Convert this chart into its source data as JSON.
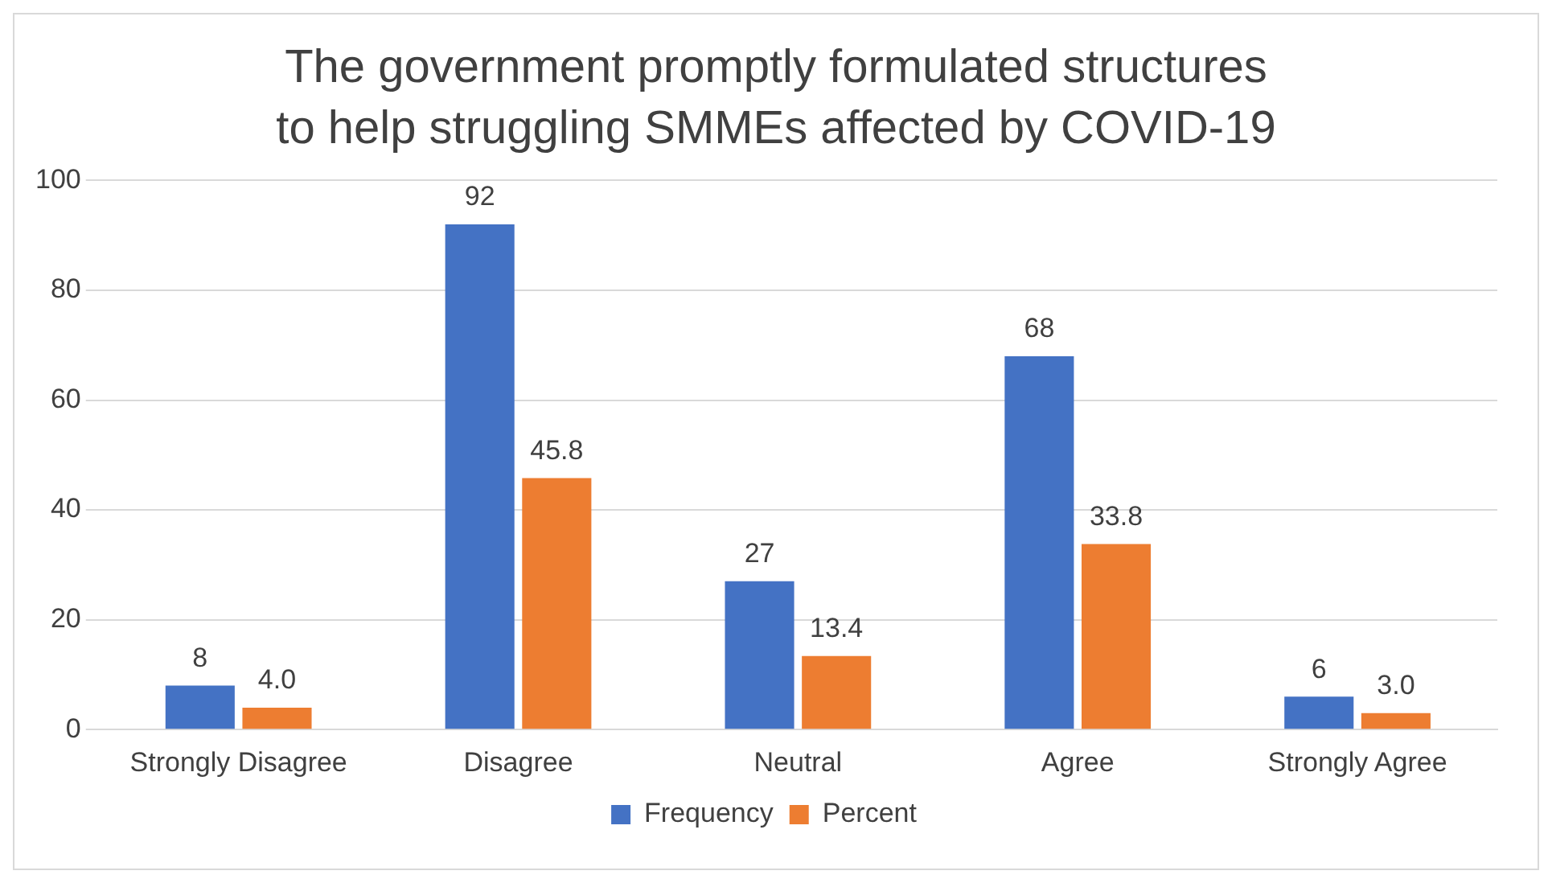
{
  "chart_data": {
    "type": "bar",
    "title": "The government promptly formulated structures to help struggling SMMEs affected by COVID-19",
    "categories": [
      "Strongly Disagree",
      "Disagree",
      "Neutral",
      "Agree",
      "Strongly Agree"
    ],
    "series": [
      {
        "name": "Frequency",
        "color": "#4472c4",
        "values": [
          8,
          92,
          27,
          68,
          6
        ],
        "value_labels": [
          "8",
          "92",
          "27",
          "68",
          "6"
        ]
      },
      {
        "name": "Percent",
        "color": "#ed7d31",
        "values": [
          4.0,
          45.8,
          13.4,
          33.8,
          3.0
        ],
        "value_labels": [
          "4.0",
          "45.8",
          "13.4",
          "33.8",
          "3.0"
        ]
      }
    ],
    "ylim": [
      0,
      100
    ],
    "yticks": [
      0,
      20,
      40,
      60,
      80,
      100
    ],
    "grid": "y",
    "legend": "bottom"
  }
}
